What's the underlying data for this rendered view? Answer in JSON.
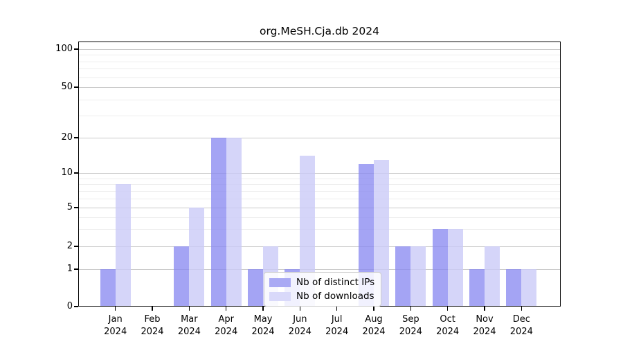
{
  "title": "org.MeSH.Cja.db 2024",
  "legend": {
    "items": [
      {
        "label": "Nb of distinct IPs",
        "color": "#a9a9f4"
      },
      {
        "label": "Nb of downloads",
        "color": "#d9d9fa"
      }
    ]
  },
  "chart_data": {
    "type": "bar",
    "title": "org.MeSH.Cja.db 2024",
    "categories": [
      "Jan",
      "Feb",
      "Mar",
      "Apr",
      "May",
      "Jun",
      "Jul",
      "Aug",
      "Sep",
      "Oct",
      "Nov",
      "Dec"
    ],
    "category_year": "2024",
    "series": [
      {
        "name": "Nb of distinct IPs",
        "color": "#a9a9f4",
        "values": [
          1,
          0,
          2,
          20,
          1,
          1,
          0,
          12,
          2,
          3,
          1,
          1
        ]
      },
      {
        "name": "Nb of downloads",
        "color": "#d9d9fa",
        "values": [
          8,
          0,
          5,
          20,
          2,
          14,
          0,
          13,
          2,
          3,
          2,
          1
        ]
      }
    ],
    "xlabel": "",
    "ylabel": "",
    "y_axis": {
      "scale": "log-like (0,1,2,5,10,20,50,100)",
      "ticks": [
        0,
        1,
        2,
        5,
        10,
        20,
        50,
        100
      ],
      "minor_ticks": [
        3,
        4,
        6,
        7,
        8,
        9,
        30,
        40,
        60,
        70,
        80,
        90
      ],
      "ylim": [
        0,
        110
      ]
    },
    "grid": true,
    "legend_position": "lower center"
  },
  "colors": {
    "bar_ips": "#a9a9f4",
    "bar_downloads": "#d9d9fa",
    "grid_major": "#c9c9c9",
    "grid_minor": "#ededed",
    "axis": "#000000",
    "background": "#ffffff"
  }
}
